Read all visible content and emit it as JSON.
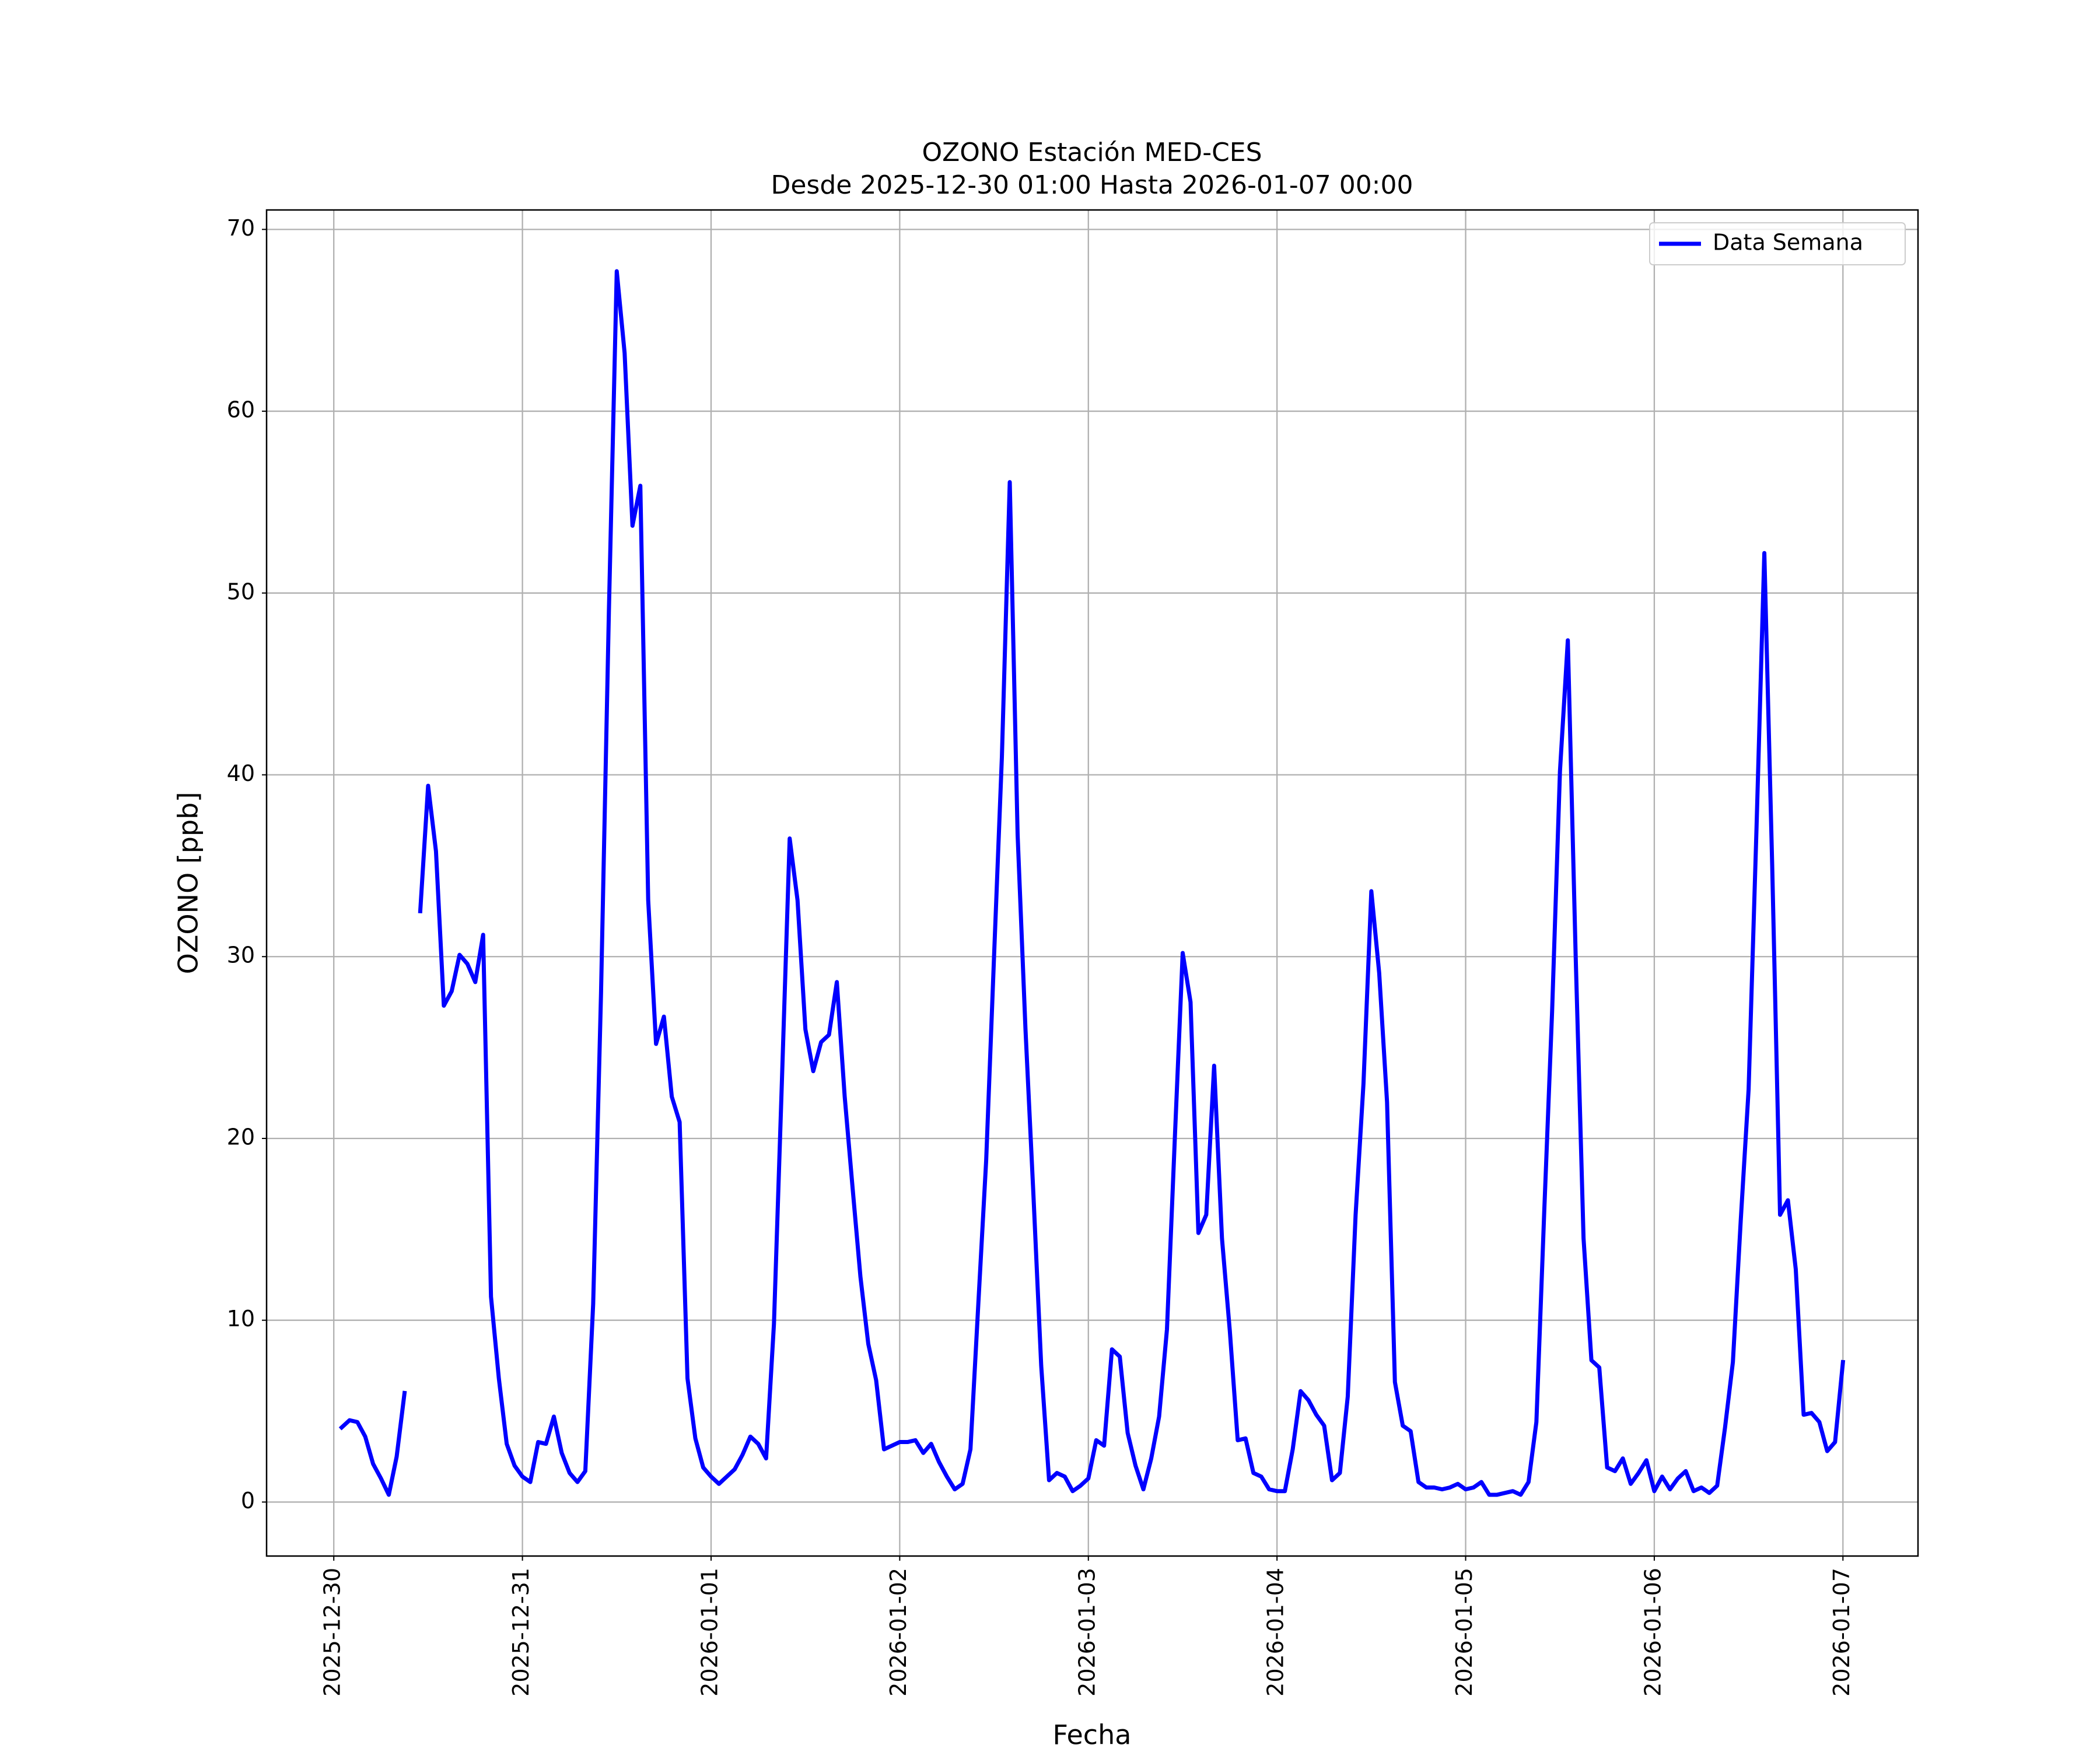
{
  "chart_data": {
    "type": "line",
    "title": "OZONO Estación MED-CES",
    "subtitle": "Desde 2025-12-30 01:00 Hasta 2026-01-07 00:00",
    "xlabel": "Fecha",
    "ylabel": "OZONO [ppb]",
    "x": [
      "2025-12-30 01:00",
      "2025-12-30 02:00",
      "2025-12-30 03:00",
      "2025-12-30 04:00",
      "2025-12-30 05:00",
      "2025-12-30 06:00",
      "2025-12-30 07:00",
      "2025-12-30 08:00",
      "2025-12-30 09:00",
      "2025-12-30 10:00",
      "2025-12-30 11:00",
      "2025-12-30 12:00",
      "2025-12-30 13:00",
      "2025-12-30 14:00",
      "2025-12-30 15:00",
      "2025-12-30 16:00",
      "2025-12-30 17:00",
      "2025-12-30 18:00",
      "2025-12-30 19:00",
      "2025-12-30 20:00",
      "2025-12-30 21:00",
      "2025-12-30 22:00",
      "2025-12-30 23:00",
      "2025-12-31 00:00",
      "2025-12-31 01:00",
      "2025-12-31 02:00",
      "2025-12-31 03:00",
      "2025-12-31 04:00",
      "2025-12-31 05:00",
      "2025-12-31 06:00",
      "2025-12-31 07:00",
      "2025-12-31 08:00",
      "2025-12-31 09:00",
      "2025-12-31 10:00",
      "2025-12-31 11:00",
      "2025-12-31 12:00",
      "2025-12-31 13:00",
      "2025-12-31 14:00",
      "2025-12-31 15:00",
      "2025-12-31 16:00",
      "2025-12-31 17:00",
      "2025-12-31 18:00",
      "2025-12-31 19:00",
      "2025-12-31 20:00",
      "2025-12-31 21:00",
      "2025-12-31 22:00",
      "2025-12-31 23:00",
      "2026-01-01 00:00",
      "2026-01-01 01:00",
      "2026-01-01 02:00",
      "2026-01-01 03:00",
      "2026-01-01 04:00",
      "2026-01-01 05:00",
      "2026-01-01 06:00",
      "2026-01-01 07:00",
      "2026-01-01 08:00",
      "2026-01-01 09:00",
      "2026-01-01 10:00",
      "2026-01-01 11:00",
      "2026-01-01 12:00",
      "2026-01-01 13:00",
      "2026-01-01 14:00",
      "2026-01-01 15:00",
      "2026-01-01 16:00",
      "2026-01-01 17:00",
      "2026-01-01 18:00",
      "2026-01-01 19:00",
      "2026-01-01 20:00",
      "2026-01-01 21:00",
      "2026-01-01 22:00",
      "2026-01-01 23:00",
      "2026-01-02 00:00",
      "2026-01-02 01:00",
      "2026-01-02 02:00",
      "2026-01-02 03:00",
      "2026-01-02 04:00",
      "2026-01-02 05:00",
      "2026-01-02 06:00",
      "2026-01-02 07:00",
      "2026-01-02 08:00",
      "2026-01-02 09:00",
      "2026-01-02 10:00",
      "2026-01-02 11:00",
      "2026-01-02 12:00",
      "2026-01-02 13:00",
      "2026-01-02 14:00",
      "2026-01-02 15:00",
      "2026-01-02 16:00",
      "2026-01-02 17:00",
      "2026-01-02 18:00",
      "2026-01-02 19:00",
      "2026-01-02 20:00",
      "2026-01-02 21:00",
      "2026-01-02 22:00",
      "2026-01-02 23:00",
      "2026-01-03 00:00",
      "2026-01-03 01:00",
      "2026-01-03 02:00",
      "2026-01-03 03:00",
      "2026-01-03 04:00",
      "2026-01-03 05:00",
      "2026-01-03 06:00",
      "2026-01-03 07:00",
      "2026-01-03 08:00",
      "2026-01-03 09:00",
      "2026-01-03 10:00",
      "2026-01-03 11:00",
      "2026-01-03 12:00",
      "2026-01-03 13:00",
      "2026-01-03 14:00",
      "2026-01-03 15:00",
      "2026-01-03 16:00",
      "2026-01-03 17:00",
      "2026-01-03 18:00",
      "2026-01-03 19:00",
      "2026-01-03 20:00",
      "2026-01-03 21:00",
      "2026-01-03 22:00",
      "2026-01-03 23:00",
      "2026-01-04 00:00",
      "2026-01-04 01:00",
      "2026-01-04 02:00",
      "2026-01-04 03:00",
      "2026-01-04 04:00",
      "2026-01-04 05:00",
      "2026-01-04 06:00",
      "2026-01-04 07:00",
      "2026-01-04 08:00",
      "2026-01-04 09:00",
      "2026-01-04 10:00",
      "2026-01-04 11:00",
      "2026-01-04 12:00",
      "2026-01-04 13:00",
      "2026-01-04 14:00",
      "2026-01-04 15:00",
      "2026-01-04 16:00",
      "2026-01-04 17:00",
      "2026-01-04 18:00",
      "2026-01-04 19:00",
      "2026-01-04 20:00",
      "2026-01-04 21:00",
      "2026-01-04 22:00",
      "2026-01-04 23:00",
      "2026-01-05 00:00",
      "2026-01-05 01:00",
      "2026-01-05 02:00",
      "2026-01-05 03:00",
      "2026-01-05 04:00",
      "2026-01-05 05:00",
      "2026-01-05 06:00",
      "2026-01-05 07:00",
      "2026-01-05 08:00",
      "2026-01-05 09:00",
      "2026-01-05 10:00",
      "2026-01-05 11:00",
      "2026-01-05 12:00",
      "2026-01-05 13:00",
      "2026-01-05 14:00",
      "2026-01-05 15:00",
      "2026-01-05 16:00",
      "2026-01-05 17:00",
      "2026-01-05 18:00",
      "2026-01-05 19:00",
      "2026-01-05 20:00",
      "2026-01-05 21:00",
      "2026-01-05 22:00",
      "2026-01-05 23:00",
      "2026-01-06 00:00",
      "2026-01-06 01:00",
      "2026-01-06 02:00",
      "2026-01-06 03:00",
      "2026-01-06 04:00",
      "2026-01-06 05:00",
      "2026-01-06 06:00",
      "2026-01-06 07:00",
      "2026-01-06 08:00",
      "2026-01-06 09:00",
      "2026-01-06 10:00",
      "2026-01-06 11:00",
      "2026-01-06 12:00",
      "2026-01-06 13:00",
      "2026-01-06 14:00",
      "2026-01-06 15:00",
      "2026-01-06 16:00",
      "2026-01-06 17:00",
      "2026-01-06 18:00",
      "2026-01-06 19:00",
      "2026-01-06 20:00",
      "2026-01-06 21:00",
      "2026-01-06 22:00",
      "2026-01-06 23:00",
      "2026-01-07 00:00"
    ],
    "series": [
      {
        "name": "Data Semana",
        "color": "#0000ff",
        "values": [
          4.1,
          4.5,
          4.4,
          3.6,
          2.1,
          1.3,
          0.4,
          2.5,
          6.0,
          null,
          32.5,
          39.4,
          35.8,
          27.3,
          28.1,
          30.1,
          29.6,
          28.6,
          31.2,
          11.3,
          6.8,
          3.2,
          2.0,
          1.4,
          1.1,
          3.3,
          3.2,
          4.7,
          2.7,
          1.6,
          1.1,
          1.7,
          10.9,
          28.0,
          49.0,
          67.7,
          63.2,
          53.7,
          55.9,
          33.1,
          25.2,
          26.7,
          22.3,
          20.9,
          6.8,
          3.5,
          1.9,
          1.4,
          1.0,
          1.4,
          1.8,
          2.6,
          3.6,
          3.2,
          2.4,
          9.8,
          23.0,
          36.5,
          33.1,
          26.0,
          23.7,
          25.3,
          25.7,
          28.6,
          22.3,
          17.3,
          12.4,
          8.7,
          6.7,
          2.9,
          3.1,
          3.3,
          3.3,
          3.4,
          2.7,
          3.2,
          2.2,
          1.4,
          0.7,
          1.0,
          2.9,
          10.9,
          18.8,
          30.0,
          41.0,
          56.1,
          36.7,
          26.0,
          17.0,
          7.5,
          1.2,
          1.6,
          1.4,
          0.6,
          0.9,
          1.3,
          3.4,
          3.1,
          8.4,
          8.0,
          3.8,
          2.0,
          0.7,
          2.4,
          4.7,
          9.5,
          20.0,
          30.2,
          27.5,
          14.8,
          15.8,
          24.0,
          14.5,
          9.4,
          3.4,
          3.5,
          1.6,
          1.4,
          0.7,
          0.6,
          0.6,
          2.9,
          6.1,
          5.6,
          4.8,
          4.2,
          1.2,
          1.6,
          5.8,
          15.8,
          23.0,
          33.6,
          29.1,
          22.0,
          6.6,
          4.2,
          3.9,
          1.1,
          0.8,
          0.8,
          0.7,
          0.8,
          1.0,
          0.7,
          0.8,
          1.1,
          0.4,
          0.4,
          0.5,
          0.6,
          0.4,
          1.1,
          4.4,
          16.0,
          27.0,
          40.2,
          47.4,
          30.0,
          14.5,
          7.8,
          7.4,
          1.9,
          1.7,
          2.4,
          1.0,
          1.6,
          2.3,
          0.6,
          1.4,
          0.7,
          1.3,
          1.7,
          0.6,
          0.8,
          0.5,
          0.9,
          4.1,
          7.7,
          15.5,
          22.7,
          37.0,
          52.2,
          35.0,
          15.8,
          16.6,
          12.8,
          4.8,
          4.9,
          4.4,
          2.8,
          3.3,
          7.7
        ]
      }
    ],
    "xlim": [
      "2025-12-29 15:27",
      "2026-01-07 09:33"
    ],
    "xticks": [
      "2025-12-30",
      "2025-12-31",
      "2026-01-01",
      "2026-01-02",
      "2026-01-03",
      "2026-01-04",
      "2026-01-05",
      "2026-01-06",
      "2026-01-07"
    ],
    "ylim": [
      -2.97,
      71.07
    ],
    "yticks": [
      0,
      10,
      20,
      30,
      40,
      50,
      60,
      70
    ],
    "grid": true,
    "legend": "upper right"
  }
}
